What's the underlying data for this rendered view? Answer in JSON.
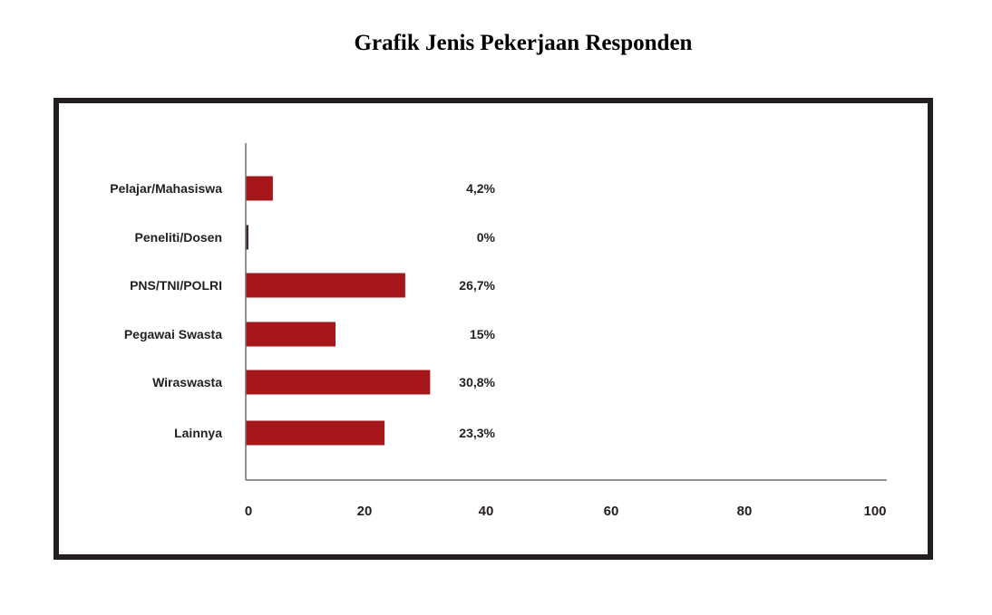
{
  "chart_data": {
    "type": "bar",
    "orientation": "horizontal",
    "title": "Grafik Jenis Pekerjaan Responden",
    "categories": [
      "Pelajar/Mahasiswa",
      "Peneliti/Dosen",
      "PNS/TNI/POLRI",
      "Pegawai Swasta",
      "Wiraswasta",
      "Lainnya"
    ],
    "values": [
      4.2,
      0,
      26.7,
      15,
      30.8,
      23.3
    ],
    "value_labels": [
      "4,2%",
      "0%",
      "26,7%",
      "15%",
      "30,8%",
      "23,3%"
    ],
    "x_ticks": [
      "0",
      "20",
      "40",
      "60",
      "80",
      "100"
    ],
    "xlim": [
      0,
      100
    ],
    "xlabel": "",
    "ylabel": "",
    "grid": false,
    "bar_color": "#a6171b",
    "axis_color": "#6d6e71",
    "frame_color": "#231f20"
  }
}
